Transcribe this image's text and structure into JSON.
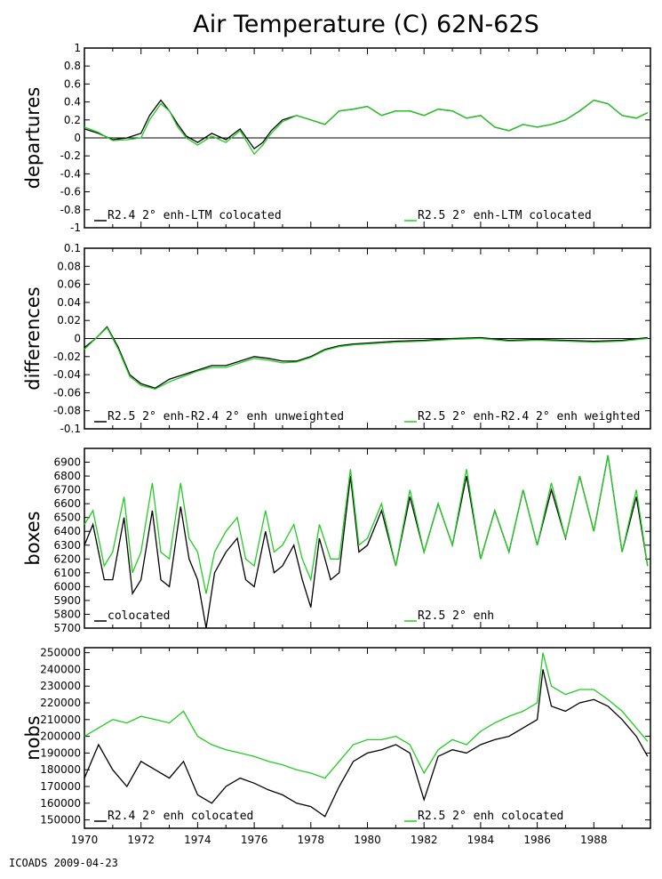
{
  "title": "Air Temperature (C) 62N-62S",
  "footer": "ICOADS 2009-04-23",
  "colors": {
    "black_series": "#000000",
    "green_series": "#22cc22",
    "axis": "#000000"
  },
  "chart_data": [
    {
      "type": "line",
      "ylabel": "departures",
      "ylim": [
        -1,
        1
      ],
      "yticks": [
        "1",
        "0.8",
        "0.6",
        "0.4",
        "0.2",
        "0",
        "-0.2",
        "-0.4",
        "-0.6",
        "-0.8",
        "-1"
      ],
      "zero_line": true,
      "xlim": [
        1970,
        1990
      ],
      "xtick_labels": [
        "1970",
        "1972",
        "1974",
        "1976",
        "1978",
        "1980",
        "1982",
        "1984",
        "1986",
        "1988"
      ],
      "legend": [
        "R2.4 2° enh-LTM colocated",
        "R2.5 2° enh-LTM colocated"
      ],
      "series": [
        {
          "name": "R2.4 2° enh-LTM colocated",
          "color": "#000000",
          "x": [
            1970,
            1970.5,
            1971,
            1971.5,
            1972,
            1972.3,
            1972.7,
            1973,
            1973.3,
            1973.6,
            1974,
            1974.5,
            1975,
            1975.5,
            1976,
            1976.3,
            1976.6,
            1977,
            1977.5,
            1978,
            1978.5,
            1979,
            1979.5,
            1980,
            1980.5,
            1981,
            1981.5,
            1982,
            1982.5,
            1983,
            1983.5,
            1984,
            1984.5,
            1985,
            1985.5,
            1986,
            1986.5,
            1987,
            1987.5,
            1988,
            1988.5,
            1989,
            1989.5,
            1989.9
          ],
          "y": [
            0.1,
            0.05,
            -0.02,
            0.0,
            0.05,
            0.25,
            0.42,
            0.3,
            0.15,
            0.02,
            -0.05,
            0.05,
            -0.02,
            0.1,
            -0.12,
            -0.05,
            0.08,
            0.2,
            0.25,
            0.2,
            0.15,
            0.3,
            0.32,
            0.35,
            0.25,
            0.3,
            0.3,
            0.25,
            0.32,
            0.3,
            0.22,
            0.25,
            0.12,
            0.08,
            0.15,
            0.12,
            0.15,
            0.2,
            0.3,
            0.42,
            0.38,
            0.25,
            0.22,
            0.28
          ]
        },
        {
          "name": "R2.5 2° enh-LTM colocated",
          "color": "#22cc22",
          "x": [
            1970,
            1970.5,
            1971,
            1971.5,
            1972,
            1972.3,
            1972.7,
            1973,
            1973.3,
            1973.6,
            1974,
            1974.5,
            1975,
            1975.5,
            1976,
            1976.3,
            1976.6,
            1977,
            1977.5,
            1978,
            1978.5,
            1979,
            1979.5,
            1980,
            1980.5,
            1981,
            1981.5,
            1982,
            1982.5,
            1983,
            1983.5,
            1984,
            1984.5,
            1985,
            1985.5,
            1986,
            1986.5,
            1987,
            1987.5,
            1988,
            1988.5,
            1989,
            1989.5,
            1989.9
          ],
          "y": [
            0.12,
            0.06,
            -0.03,
            -0.02,
            0.0,
            0.2,
            0.38,
            0.3,
            0.12,
            0.0,
            -0.08,
            0.02,
            -0.05,
            0.08,
            -0.18,
            -0.08,
            0.05,
            0.18,
            0.25,
            0.2,
            0.15,
            0.3,
            0.32,
            0.35,
            0.25,
            0.3,
            0.3,
            0.25,
            0.32,
            0.3,
            0.22,
            0.25,
            0.12,
            0.08,
            0.15,
            0.12,
            0.15,
            0.2,
            0.3,
            0.42,
            0.38,
            0.25,
            0.22,
            0.28
          ]
        }
      ]
    },
    {
      "type": "line",
      "ylabel": "differences",
      "ylim": [
        -0.1,
        0.1
      ],
      "yticks": [
        "0.1",
        "0.08",
        "0.06",
        "0.04",
        "0.02",
        "0",
        "-0.02",
        "-0.04",
        "-0.06",
        "-0.08",
        "-0.1"
      ],
      "zero_line": true,
      "xlim": [
        1970,
        1990
      ],
      "xtick_labels": [
        "1970",
        "1972",
        "1974",
        "1976",
        "1978",
        "1980",
        "1982",
        "1984",
        "1986",
        "1988"
      ],
      "legend": [
        "R2.5 2° enh-R2.4 2° enh unweighted",
        "R2.5 2° enh-R2.4 2° enh weighted"
      ],
      "series": [
        {
          "name": "R2.5 2° enh-R2.4 2° enh unweighted",
          "color": "#000000",
          "x": [
            1970,
            1970.4,
            1970.8,
            1971.2,
            1971.6,
            1972,
            1972.5,
            1973,
            1973.5,
            1974,
            1974.5,
            1975,
            1975.5,
            1976,
            1976.5,
            1977,
            1977.5,
            1978,
            1978.5,
            1979,
            1979.5,
            1980,
            1981,
            1982,
            1983,
            1984,
            1985,
            1986,
            1987,
            1988,
            1989,
            1989.9
          ],
          "y": [
            -0.01,
            0.0,
            0.013,
            -0.01,
            -0.04,
            -0.05,
            -0.055,
            -0.045,
            -0.04,
            -0.035,
            -0.03,
            -0.03,
            -0.025,
            -0.02,
            -0.022,
            -0.025,
            -0.025,
            -0.02,
            -0.012,
            -0.008,
            -0.006,
            -0.005,
            -0.003,
            -0.002,
            0.0,
            0.001,
            -0.002,
            -0.001,
            -0.002,
            -0.003,
            -0.002,
            0.001
          ]
        },
        {
          "name": "R2.5 2° enh-R2.4 2° enh weighted",
          "color": "#22cc22",
          "x": [
            1970,
            1970.4,
            1970.8,
            1971.2,
            1971.6,
            1972,
            1972.5,
            1973,
            1973.5,
            1974,
            1974.5,
            1975,
            1975.5,
            1976,
            1976.5,
            1977,
            1977.5,
            1978,
            1978.5,
            1979,
            1979.5,
            1980,
            1981,
            1982,
            1983,
            1984,
            1985,
            1986,
            1987,
            1988,
            1989,
            1989.9
          ],
          "y": [
            -0.012,
            0.0,
            0.012,
            -0.012,
            -0.042,
            -0.052,
            -0.056,
            -0.048,
            -0.042,
            -0.036,
            -0.032,
            -0.032,
            -0.027,
            -0.022,
            -0.024,
            -0.027,
            -0.026,
            -0.021,
            -0.013,
            -0.009,
            -0.007,
            -0.006,
            -0.004,
            -0.003,
            -0.001,
            0.0,
            -0.003,
            -0.002,
            -0.003,
            -0.004,
            -0.003,
            0.0
          ]
        }
      ]
    },
    {
      "type": "line",
      "ylabel": "boxes",
      "ylim": [
        5700,
        7000
      ],
      "yticks": [
        "6900",
        "6800",
        "6700",
        "6600",
        "6500",
        "6400",
        "6300",
        "6200",
        "6100",
        "6000",
        "5900",
        "5800",
        "5700"
      ],
      "zero_line": false,
      "xlim": [
        1970,
        1990
      ],
      "xtick_labels": [
        "1970",
        "1972",
        "1974",
        "1976",
        "1978",
        "1980",
        "1982",
        "1984",
        "1986",
        "1988"
      ],
      "legend": [
        "colocated",
        "R2.5 2° enh"
      ],
      "series": [
        {
          "name": "colocated",
          "color": "#000000",
          "x": [
            1970,
            1970.3,
            1970.7,
            1971,
            1971.4,
            1971.7,
            1972,
            1972.4,
            1972.7,
            1973,
            1973.4,
            1973.7,
            1974,
            1974.3,
            1974.6,
            1975,
            1975.4,
            1975.7,
            1976,
            1976.4,
            1976.7,
            1977,
            1977.4,
            1977.7,
            1978,
            1978.3,
            1978.7,
            1979,
            1979.4,
            1979.7,
            1980,
            1980.5,
            1981,
            1981.5,
            1982,
            1982.5,
            1983,
            1983.5,
            1984,
            1984.5,
            1985,
            1985.5,
            1986,
            1986.5,
            1987,
            1987.5,
            1988,
            1988.5,
            1989,
            1989.5,
            1989.9
          ],
          "y": [
            6300,
            6450,
            6050,
            6050,
            6500,
            5950,
            6050,
            6550,
            6050,
            6000,
            6580,
            6200,
            6050,
            5700,
            6100,
            6250,
            6350,
            6050,
            6000,
            6400,
            6100,
            6150,
            6300,
            6050,
            5850,
            6350,
            6050,
            6100,
            6800,
            6250,
            6300,
            6550,
            6150,
            6650,
            6250,
            6600,
            6300,
            6800,
            6200,
            6550,
            6250,
            6700,
            6300,
            6700,
            6350,
            6800,
            6400,
            6950,
            6250,
            6650,
            6150
          ]
        },
        {
          "name": "R2.5 2° enh",
          "color": "#22cc22",
          "x": [
            1970,
            1970.3,
            1970.7,
            1971,
            1971.4,
            1971.7,
            1972,
            1972.4,
            1972.7,
            1973,
            1973.4,
            1973.7,
            1974,
            1974.3,
            1974.6,
            1975,
            1975.4,
            1975.7,
            1976,
            1976.4,
            1976.7,
            1977,
            1977.4,
            1977.7,
            1978,
            1978.3,
            1978.7,
            1979,
            1979.4,
            1979.7,
            1980,
            1980.5,
            1981,
            1981.5,
            1982,
            1982.5,
            1983,
            1983.5,
            1984,
            1984.5,
            1985,
            1985.5,
            1986,
            1986.5,
            1987,
            1987.5,
            1988,
            1988.5,
            1989,
            1989.5,
            1989.9
          ],
          "y": [
            6450,
            6550,
            6150,
            6250,
            6650,
            6100,
            6250,
            6750,
            6250,
            6200,
            6750,
            6350,
            6250,
            5950,
            6250,
            6400,
            6500,
            6200,
            6150,
            6550,
            6250,
            6300,
            6450,
            6200,
            6050,
            6450,
            6200,
            6200,
            6850,
            6300,
            6350,
            6600,
            6150,
            6700,
            6250,
            6600,
            6300,
            6850,
            6200,
            6550,
            6250,
            6700,
            6300,
            6750,
            6350,
            6800,
            6400,
            6950,
            6250,
            6700,
            6150
          ]
        }
      ]
    },
    {
      "type": "line",
      "ylabel": "nobs",
      "ylim": [
        145000,
        253000
      ],
      "yticks": [
        "250000",
        "240000",
        "230000",
        "220000",
        "210000",
        "200000",
        "190000",
        "180000",
        "170000",
        "160000",
        "150000"
      ],
      "zero_line": false,
      "xlim": [
        1970,
        1990
      ],
      "xtick_labels": [
        "1970",
        "1972",
        "1974",
        "1976",
        "1978",
        "1980",
        "1982",
        "1984",
        "1986",
        "1988"
      ],
      "legend": [
        "R2.4 2° enh colocated",
        "R2.5 2° enh colocated"
      ],
      "series": [
        {
          "name": "R2.4 2° enh colocated",
          "color": "#000000",
          "x": [
            1970,
            1970.5,
            1971,
            1971.5,
            1972,
            1972.5,
            1973,
            1973.5,
            1974,
            1974.5,
            1975,
            1975.5,
            1976,
            1976.5,
            1977,
            1977.5,
            1978,
            1978.5,
            1979,
            1979.5,
            1980,
            1980.5,
            1981,
            1981.5,
            1982,
            1982.5,
            1983,
            1983.5,
            1984,
            1984.5,
            1985,
            1985.5,
            1986,
            1986.2,
            1986.5,
            1987,
            1987.5,
            1988,
            1988.5,
            1989,
            1989.5,
            1989.9
          ],
          "y": [
            175000,
            195000,
            180000,
            170000,
            185000,
            180000,
            175000,
            185000,
            165000,
            160000,
            170000,
            175000,
            172000,
            168000,
            165000,
            160000,
            158000,
            152000,
            170000,
            185000,
            190000,
            192000,
            195000,
            190000,
            162000,
            188000,
            192000,
            190000,
            195000,
            198000,
            200000,
            205000,
            210000,
            240000,
            218000,
            215000,
            220000,
            222000,
            218000,
            210000,
            200000,
            188000
          ]
        },
        {
          "name": "R2.5 2° enh colocated",
          "color": "#22cc22",
          "x": [
            1970,
            1970.5,
            1971,
            1971.5,
            1972,
            1972.5,
            1973,
            1973.5,
            1974,
            1974.5,
            1975,
            1975.5,
            1976,
            1976.5,
            1977,
            1977.5,
            1978,
            1978.5,
            1979,
            1979.5,
            1980,
            1980.5,
            1981,
            1981.5,
            1982,
            1982.5,
            1983,
            1983.5,
            1984,
            1984.5,
            1985,
            1985.5,
            1986,
            1986.2,
            1986.5,
            1987,
            1987.5,
            1988,
            1988.5,
            1989,
            1989.5,
            1989.9
          ],
          "y": [
            200000,
            205000,
            210000,
            208000,
            212000,
            210000,
            208000,
            215000,
            200000,
            195000,
            192000,
            190000,
            188000,
            185000,
            183000,
            180000,
            178000,
            175000,
            185000,
            195000,
            198000,
            198000,
            200000,
            195000,
            178000,
            192000,
            198000,
            195000,
            203000,
            208000,
            212000,
            215000,
            220000,
            250000,
            230000,
            225000,
            228000,
            228000,
            222000,
            215000,
            205000,
            197000
          ]
        }
      ]
    }
  ]
}
